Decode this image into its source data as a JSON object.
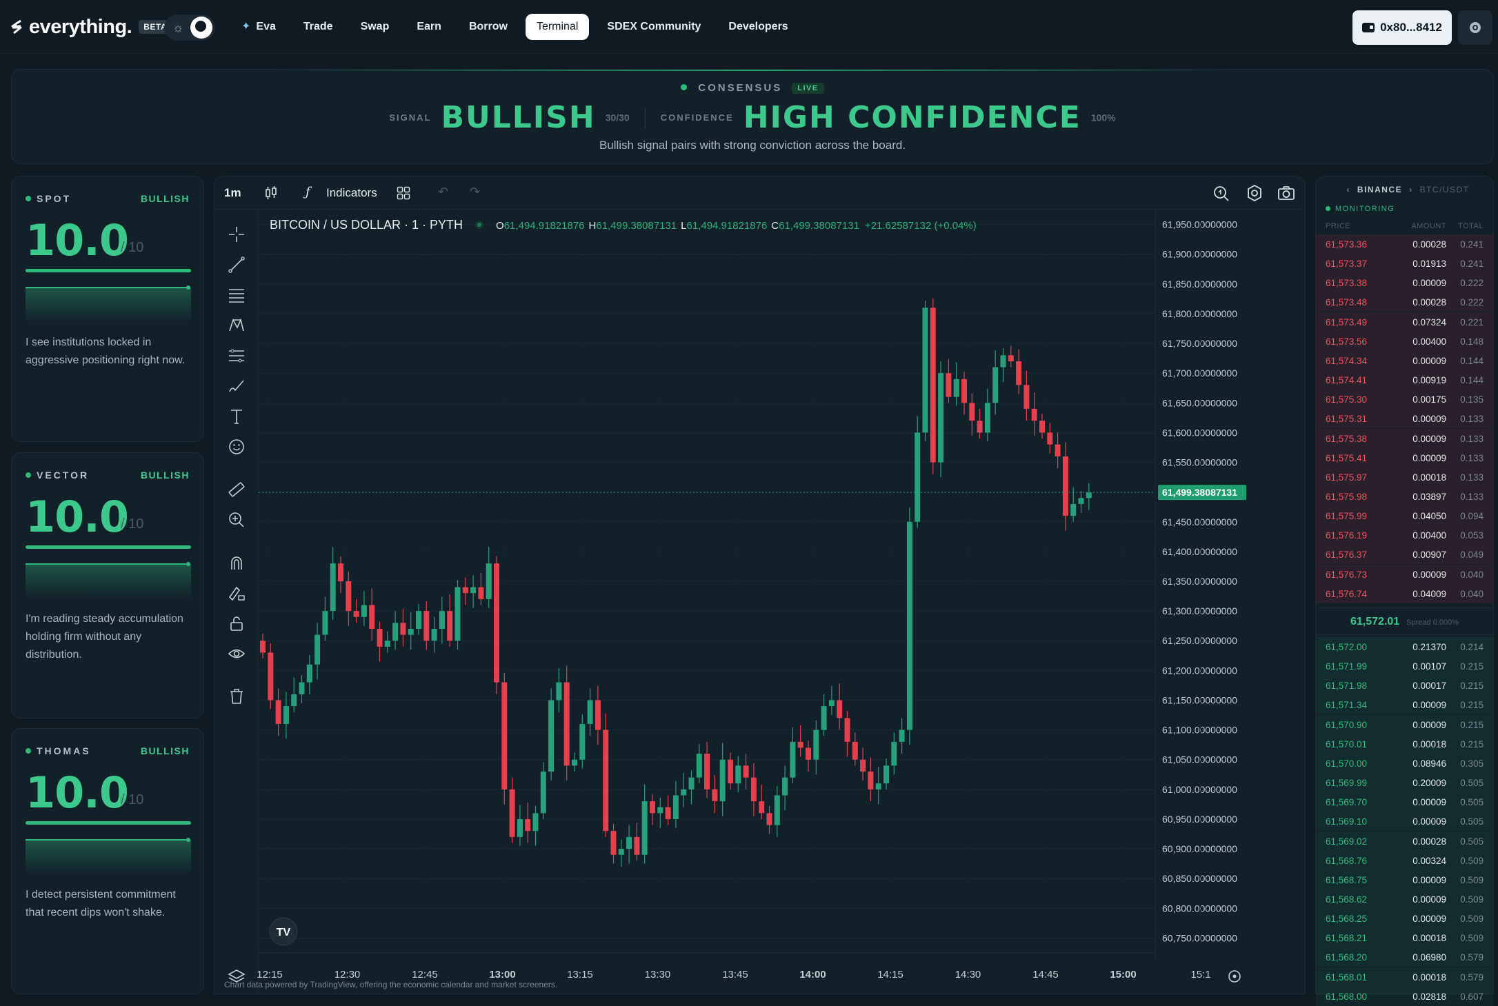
{
  "nav": {
    "brand": "everything.",
    "beta_label": "BETA",
    "items": [
      "Eva",
      "Trade",
      "Swap",
      "Earn",
      "Borrow",
      "Terminal",
      "SDEX Community",
      "Developers"
    ],
    "active": "Terminal",
    "wallet_label": "0x80...8412"
  },
  "consensus": {
    "label": "CONSENSUS",
    "live_label": "LIVE",
    "signal_label": "SIGNAL",
    "signal_value": "BULLISH",
    "signal_score": "30/30",
    "confidence_label": "CONFIDENCE",
    "confidence_value": "HIGH CONFIDENCE",
    "confidence_pct": "100%",
    "description": "Bullish signal pairs with strong conviction across the board."
  },
  "agents": [
    {
      "name": "SPOT",
      "tag": "BULLISH",
      "score": "10.0",
      "max": "/ 10",
      "fill": 1.0,
      "text": "I see institutions locked in aggressive positioning right now."
    },
    {
      "name": "VECTOR",
      "tag": "BULLISH",
      "score": "10.0",
      "max": "/ 10",
      "fill": 1.0,
      "text": "I'm reading steady accumulation holding firm without any distribution."
    },
    {
      "name": "THOMAS",
      "tag": "BULLISH",
      "score": "10.0",
      "max": "/ 10",
      "fill": 1.0,
      "text": "I detect persistent commitment that recent dips won't shake."
    }
  ],
  "toolbar": {
    "interval": "1m",
    "indicators_label": "Indicators"
  },
  "chart_legend": {
    "title": "BITCOIN / US DOLLAR · 1 · PYTH",
    "o_key": "O",
    "o_val": "61,494.91821876",
    "h_key": "H",
    "h_val": "61,499.38087131",
    "l_key": "L",
    "l_val": "61,494.91821876",
    "c_key": "C",
    "c_val": "61,499.38087131",
    "change": "+21.62587132 (+0.04%)"
  },
  "footnote": "Chart data powered by TradingView, offering the economic calendar and market screeners.",
  "chart_data": {
    "type": "candlestick",
    "y_ticks": [
      61950,
      61900,
      61850,
      61800,
      61750,
      61700,
      61650,
      61600,
      61550,
      61500,
      61450,
      61400,
      61350,
      61300,
      61250,
      61200,
      61150,
      61100,
      61050,
      61000,
      60950,
      60900,
      60850,
      60800,
      60750
    ],
    "y_tick_labels": [
      "61,950.00000000",
      "61,900.00000000",
      "61,850.00000000",
      "61,800.00000000",
      "61,750.00000000",
      "61,700.00000000",
      "61,650.00000000",
      "61,600.00000000",
      "61,550.00000000",
      "61,500.00000000",
      "61,450.00000000",
      "61,400.00000000",
      "61,350.00000000",
      "61,300.00000000",
      "61,250.00000000",
      "61,200.00000000",
      "61,150.00000000",
      "61,100.00000000",
      "61,050.00000000",
      "61,000.00000000",
      "60,950.00000000",
      "60,900.00000000",
      "60,850.00000000",
      "60,800.00000000",
      "60,750.00000000"
    ],
    "x_labels": [
      "12:15",
      "12:30",
      "12:45",
      "13:00",
      "13:15",
      "13:30",
      "13:45",
      "14:00",
      "14:15",
      "14:30",
      "14:45",
      "15:00",
      "15:1"
    ],
    "x_bold": [
      "13:00",
      "14:00",
      "15:00"
    ],
    "ylim": [
      60725,
      61975
    ],
    "last_price": 61499.38,
    "last_price_label": "61,499.38087131",
    "closes": [
      61230,
      61150,
      61110,
      61140,
      61160,
      61180,
      61210,
      61260,
      61300,
      61380,
      61350,
      61300,
      61290,
      61310,
      61270,
      61240,
      61250,
      61280,
      61260,
      61270,
      61300,
      61250,
      61270,
      61300,
      61250,
      61340,
      61330,
      61340,
      61320,
      61380,
      61180,
      61000,
      60920,
      60950,
      60930,
      60960,
      61030,
      61150,
      61180,
      61040,
      61050,
      61110,
      61150,
      61100,
      60930,
      60890,
      60900,
      60920,
      60890,
      60980,
      60960,
      60970,
      60950,
      60990,
      61000,
      61020,
      61060,
      61000,
      60980,
      61050,
      61010,
      61040,
      61020,
      60980,
      60960,
      60940,
      60990,
      61020,
      61080,
      61070,
      61050,
      61100,
      61140,
      61150,
      61120,
      61080,
      61050,
      61030,
      61000,
      61010,
      61040,
      61080,
      61100,
      61450,
      61600,
      61810,
      61550,
      61700,
      61660,
      61690,
      61650,
      61620,
      61600,
      61650,
      61710,
      61730,
      61720,
      61680,
      61640,
      61620,
      61600,
      61580,
      61560,
      61460,
      61480,
      61490,
      61499
    ]
  },
  "order_book": {
    "exchange": "BINANCE",
    "pair": "BTC/USDT",
    "status": "MONITORING",
    "cols": [
      "PRICE",
      "AMOUNT",
      "TOTAL"
    ],
    "asks": [
      [
        "61,573.36",
        "0.00028",
        "0.241"
      ],
      [
        "61,573.37",
        "0.01913",
        "0.241"
      ],
      [
        "61,573.38",
        "0.00009",
        "0.222"
      ],
      [
        "61,573.48",
        "0.00028",
        "0.222"
      ],
      [
        "61,573.49",
        "0.07324",
        "0.221"
      ],
      [
        "61,573.56",
        "0.00400",
        "0.148"
      ],
      [
        "61,574.34",
        "0.00009",
        "0.144"
      ],
      [
        "61,574.41",
        "0.00919",
        "0.144"
      ],
      [
        "61,575.30",
        "0.00175",
        "0.135"
      ],
      [
        "61,575.31",
        "0.00009",
        "0.133"
      ],
      [
        "61,575.38",
        "0.00009",
        "0.133"
      ],
      [
        "61,575.41",
        "0.00009",
        "0.133"
      ],
      [
        "61,575.97",
        "0.00018",
        "0.133"
      ],
      [
        "61,575.98",
        "0.03897",
        "0.133"
      ],
      [
        "61,575.99",
        "0.04050",
        "0.094"
      ],
      [
        "61,576.19",
        "0.00400",
        "0.053"
      ],
      [
        "61,576.37",
        "0.00907",
        "0.049"
      ],
      [
        "61,576.73",
        "0.00009",
        "0.040"
      ],
      [
        "61,576.74",
        "0.04009",
        "0.040"
      ]
    ],
    "mid_price": "61,572.01",
    "spread": "Spread 0.000%",
    "bids": [
      [
        "61,572.00",
        "0.21370",
        "0.214"
      ],
      [
        "61,571.99",
        "0.00107",
        "0.215"
      ],
      [
        "61,571.98",
        "0.00017",
        "0.215"
      ],
      [
        "61,571.34",
        "0.00009",
        "0.215"
      ],
      [
        "61,570.90",
        "0.00009",
        "0.215"
      ],
      [
        "61,570.01",
        "0.00018",
        "0.215"
      ],
      [
        "61,570.00",
        "0.08946",
        "0.305"
      ],
      [
        "61,569.99",
        "0.20009",
        "0.505"
      ],
      [
        "61,569.70",
        "0.00009",
        "0.505"
      ],
      [
        "61,569.10",
        "0.00009",
        "0.505"
      ],
      [
        "61,569.02",
        "0.00028",
        "0.505"
      ],
      [
        "61,568.76",
        "0.00324",
        "0.509"
      ],
      [
        "61,568.75",
        "0.00009",
        "0.509"
      ],
      [
        "61,568.62",
        "0.00009",
        "0.509"
      ],
      [
        "61,568.25",
        "0.00009",
        "0.509"
      ],
      [
        "61,568.21",
        "0.00018",
        "0.509"
      ],
      [
        "61,568.20",
        "0.06980",
        "0.579"
      ],
      [
        "61,568.01",
        "0.00018",
        "0.579"
      ],
      [
        "61,568.00",
        "0.02818",
        "0.607"
      ]
    ]
  },
  "colors": {
    "up": "#26a17b",
    "down": "#e5404e",
    "accent": "#3ec98c"
  }
}
